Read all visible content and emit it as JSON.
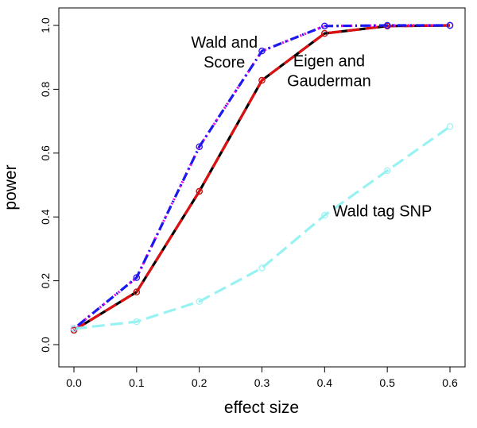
{
  "chart_data": {
    "type": "line",
    "title": "",
    "xlabel": "effect size",
    "ylabel": "power",
    "x": [
      0.0,
      0.1,
      0.2,
      0.3,
      0.4,
      0.5,
      0.6
    ],
    "xlim": [
      0.0,
      0.6
    ],
    "ylim": [
      0.0,
      1.0
    ],
    "xticks": [
      "0.0",
      "0.1",
      "0.2",
      "0.3",
      "0.4",
      "0.5",
      "0.6"
    ],
    "yticks": [
      "0.0",
      "0.2",
      "0.4",
      "0.6",
      "0.8",
      "1.0"
    ],
    "grid": false,
    "legend": "none",
    "series": [
      {
        "values": [
          0.045,
          0.165,
          0.48,
          0.828,
          0.975,
          0.998,
          1.0
        ],
        "color": "#000000",
        "dash": "solid",
        "marker_color": "#000000"
      },
      {
        "values": [
          0.045,
          0.165,
          0.48,
          0.828,
          0.975,
          0.998,
          1.0
        ],
        "color": "#dd1111",
        "dash": "long-dash",
        "marker_color": "#dd1111"
      },
      {
        "values": [
          0.05,
          0.21,
          0.62,
          0.92,
          0.998,
          1.0,
          1.0
        ],
        "color": "#ee00ee",
        "dash": "dotted",
        "marker_color": "#ee00ee"
      },
      {
        "values": [
          0.05,
          0.21,
          0.62,
          0.92,
          0.998,
          1.0,
          1.0
        ],
        "color": "#1a1aee",
        "dash": "dot-dash",
        "marker_color": "#1a1aee"
      },
      {
        "values": [
          0.05,
          0.072,
          0.135,
          0.24,
          0.405,
          0.545,
          0.683
        ],
        "color": "#99f2f2",
        "dash": "long-dash",
        "marker_color": "#99f2f2"
      }
    ],
    "annotations": [
      {
        "lines": [
          "Wald and",
          "Score"
        ],
        "x": 0.24,
        "y": 0.93
      },
      {
        "lines": [
          "Eigen and",
          "Gauderman"
        ],
        "x": 0.407,
        "y": 0.872
      },
      {
        "lines": [
          "Wald tag SNP"
        ],
        "x": 0.492,
        "y": 0.402
      }
    ]
  }
}
